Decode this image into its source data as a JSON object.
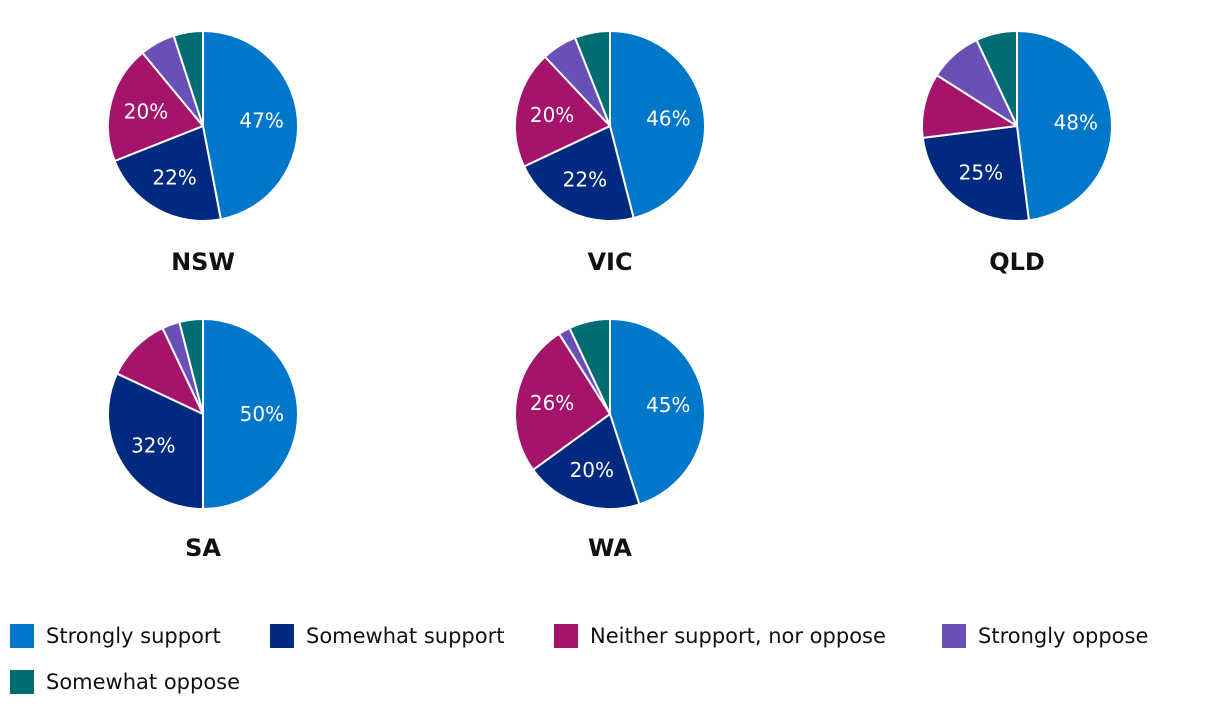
{
  "chart_data": [
    {
      "type": "pie",
      "title": "NSW",
      "categories": [
        "Strongly support",
        "Somewhat support",
        "Neither support, nor oppose",
        "Strongly oppose",
        "Somewhat oppose"
      ],
      "values": [
        47,
        22,
        20,
        6,
        5
      ],
      "labels": [
        "47%",
        "22%",
        "20%",
        "",
        ""
      ]
    },
    {
      "type": "pie",
      "title": "VIC",
      "categories": [
        "Strongly support",
        "Somewhat support",
        "Neither support, nor oppose",
        "Strongly oppose",
        "Somewhat oppose"
      ],
      "values": [
        46,
        22,
        20,
        6,
        6
      ],
      "labels": [
        "46%",
        "22%",
        "20%",
        "",
        ""
      ]
    },
    {
      "type": "pie",
      "title": "QLD",
      "categories": [
        "Strongly support",
        "Somewhat support",
        "Neither support, nor oppose",
        "Strongly oppose",
        "Somewhat oppose"
      ],
      "values": [
        48,
        25,
        11,
        9,
        7
      ],
      "labels": [
        "48%",
        "25%",
        "",
        "",
        ""
      ]
    },
    {
      "type": "pie",
      "title": "SA",
      "categories": [
        "Strongly support",
        "Somewhat support",
        "Neither support, nor oppose",
        "Strongly oppose",
        "Somewhat oppose"
      ],
      "values": [
        50,
        32,
        11,
        3,
        4
      ],
      "labels": [
        "50%",
        "32%",
        "",
        "",
        ""
      ]
    },
    {
      "type": "pie",
      "title": "WA",
      "categories": [
        "Strongly support",
        "Somewhat support",
        "Neither support, nor oppose",
        "Strongly oppose",
        "Somewhat oppose"
      ],
      "values": [
        45,
        20,
        26,
        2,
        7
      ],
      "labels": [
        "45%",
        "20%",
        "26%",
        "",
        ""
      ]
    }
  ],
  "legend": [
    {
      "label": "Strongly support",
      "color": "#0077c8"
    },
    {
      "label": "Somewhat support",
      "color": "#002a7f"
    },
    {
      "label": "Neither support, nor oppose",
      "color": "#a5146b"
    },
    {
      "label": "Strongly oppose",
      "color": "#6a4fb6"
    },
    {
      "label": "Somewhat oppose",
      "color": "#006d73"
    }
  ]
}
